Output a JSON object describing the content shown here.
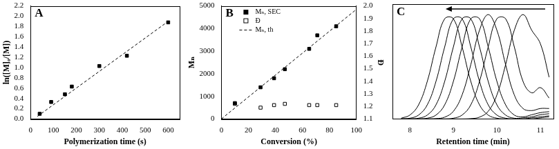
{
  "chart_data": [
    {
      "type": "scatter",
      "annotation": "A",
      "x_label": "Polymerization time (s)",
      "y_label": "ln([M]₀/[M])",
      "xlim": [
        0,
        650
      ],
      "xticks": [
        0,
        100,
        200,
        300,
        400,
        500,
        600
      ],
      "ylim": [
        0,
        2.2
      ],
      "yticks": [
        {
          "value": 0,
          "label": "0.0"
        },
        0.2,
        0.4,
        0.6,
        0.8,
        {
          "value": 1,
          "label": "1.0"
        },
        1.2,
        1.4,
        1.6,
        1.8,
        {
          "value": 2,
          "label": "2.0"
        },
        2.2
      ],
      "grid": false,
      "series": [
        {
          "type": "scatter",
          "marker": "square",
          "color": "#000000",
          "x": [
            40,
            90,
            150,
            180,
            300,
            420,
            600
          ],
          "values": [
            0.1,
            0.33,
            0.48,
            0.63,
            1.03,
            1.23,
            1.88
          ]
        },
        {
          "type": "line",
          "line_style": "dashed",
          "color": "#000000",
          "x": [
            30,
            600
          ],
          "values": [
            0.05,
            1.9
          ]
        }
      ]
    },
    {
      "type": "scatter",
      "annotation": "B",
      "x_label": "Conversion (%)",
      "y_label": "Mₙ",
      "y2_label": "Đ",
      "xlim": [
        0,
        100
      ],
      "xticks": [
        0,
        20,
        40,
        60,
        80,
        100
      ],
      "ylim": [
        0,
        5000
      ],
      "yticks": [
        0,
        1000,
        2000,
        3000,
        4000,
        5000
      ],
      "y2lim": [
        1.1,
        2.0
      ],
      "y2ticks": [
        1.1,
        1.2,
        1.3,
        1.4,
        1.5,
        1.6,
        1.7,
        1.8,
        1.9,
        {
          "value": 2,
          "label": "2.0"
        }
      ],
      "grid": false,
      "legend": "upper left",
      "series": [
        {
          "name": "Mₙ, SEC",
          "type": "scatter",
          "marker": "square",
          "color": "#000000",
          "x": [
            10,
            29,
            39,
            47,
            65,
            71,
            85
          ],
          "values": [
            700,
            1400,
            1800,
            2200,
            3100,
            3700,
            4100
          ]
        },
        {
          "name": "Đ",
          "type": "scatter",
          "marker": "open_square",
          "color": "#000000",
          "axis": "y2",
          "x": [
            10,
            29,
            39,
            47,
            65,
            71,
            85
          ],
          "values": [
            1.22,
            1.19,
            1.21,
            1.22,
            1.21,
            1.21,
            1.21
          ]
        },
        {
          "name": "Mₙ, th",
          "type": "line",
          "line_style": "dashed",
          "color": "#000000",
          "x": [
            0,
            100
          ],
          "values": [
            0,
            4850
          ]
        }
      ]
    },
    {
      "type": "line",
      "annotation": "C",
      "x_label": "Retention time (min)",
      "xlim": [
        7.6,
        11.3
      ],
      "xticks": [
        8,
        9,
        10,
        11
      ],
      "ylim": [
        0,
        1.1
      ],
      "grid": false,
      "tick_labels": "x",
      "x": [
        7.8,
        8.0,
        8.2,
        8.4,
        8.6,
        8.8,
        9.0,
        9.2,
        9.4,
        9.6,
        9.8,
        10.0,
        10.2,
        10.4,
        10.6,
        10.8,
        11.0,
        11.2
      ],
      "series": [
        {
          "type": "line",
          "line_style": "solid",
          "color": "#000000",
          "values": [
            0.007,
            0.037,
            0.135,
            0.36,
            0.69,
            0.96,
            0.96,
            0.69,
            0.36,
            0.135,
            0.037,
            0.007,
            0,
            0,
            0,
            0,
            0.01,
            0.02
          ]
        },
        {
          "type": "line",
          "line_style": "solid",
          "color": "#000000",
          "values": [
            0,
            0.007,
            0.037,
            0.135,
            0.36,
            0.69,
            0.96,
            0.96,
            0.69,
            0.36,
            0.135,
            0.037,
            0.007,
            0,
            0,
            0.01,
            0.02,
            0.03
          ]
        },
        {
          "type": "line",
          "line_style": "solid",
          "color": "#000000",
          "values": [
            0,
            0,
            0.007,
            0.037,
            0.135,
            0.36,
            0.69,
            0.96,
            0.96,
            0.69,
            0.36,
            0.135,
            0.037,
            0.007,
            0.01,
            0.02,
            0.04,
            0.05
          ]
        },
        {
          "type": "line",
          "line_style": "solid",
          "color": "#000000",
          "values": [
            0,
            0,
            0,
            0.007,
            0.037,
            0.135,
            0.36,
            0.69,
            0.96,
            0.96,
            0.69,
            0.36,
            0.135,
            0.037,
            0.02,
            0.04,
            0.06,
            0.07
          ]
        },
        {
          "type": "line",
          "line_style": "solid",
          "color": "#000000",
          "values": [
            0,
            0,
            0,
            0,
            0.003,
            0.017,
            0.073,
            0.23,
            0.52,
            0.85,
            1,
            0.85,
            0.52,
            0.23,
            0.1,
            0.08,
            0.1,
            0.1
          ]
        },
        {
          "type": "line",
          "line_style": "solid",
          "color": "#000000",
          "values": [
            0,
            0,
            0,
            0,
            0,
            0,
            0.007,
            0.037,
            0.135,
            0.36,
            0.69,
            0.96,
            0.96,
            0.69,
            0.36,
            0.25,
            0.3,
            0.2
          ]
        },
        {
          "type": "line",
          "line_style": "solid",
          "color": "#000000",
          "values": [
            0,
            0,
            0,
            0,
            0,
            0,
            0,
            0,
            0.003,
            0.017,
            0.073,
            0.23,
            0.52,
            0.85,
            1,
            0.85,
            0.72,
            0.4
          ]
        }
      ]
    }
  ]
}
